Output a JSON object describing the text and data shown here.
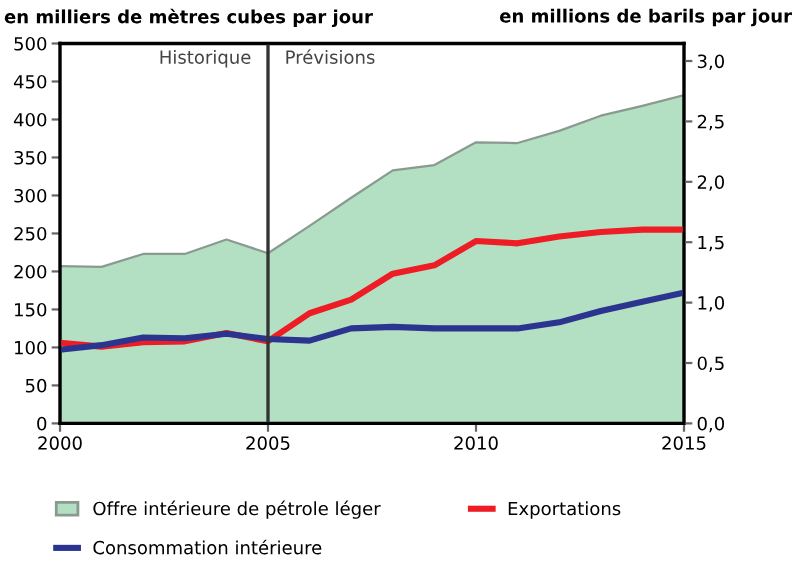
{
  "chart_data": {
    "type": "line",
    "ylabel": "en milliers de mètres cubes par jour",
    "y2label": "en millions de barils par jour",
    "x": [
      2000,
      2001,
      2002,
      2003,
      2004,
      2005,
      2006,
      2007,
      2008,
      2009,
      2010,
      2011,
      2012,
      2013,
      2014,
      2015
    ],
    "series": [
      {
        "name": "Offre intérieure de pétrole léger",
        "type": "area",
        "color": "#b3dfc3",
        "values": [
          207,
          206,
          223,
          223,
          242,
          224,
          260,
          297,
          333,
          340,
          370,
          369,
          385,
          405,
          418,
          432
        ]
      },
      {
        "name": "Exportations",
        "color": "#ee1c25",
        "values": [
          106,
          101,
          107,
          108,
          119,
          108,
          145,
          163,
          197,
          208,
          240,
          237,
          246,
          252,
          255,
          255
        ]
      },
      {
        "name": "Consommation intérieure",
        "color": "#2b3590",
        "values": [
          97,
          103,
          113,
          112,
          118,
          111,
          109,
          125,
          127,
          125,
          125,
          125,
          133,
          148,
          160,
          172
        ]
      }
    ],
    "xlim": [
      2000,
      2015
    ],
    "xticks": [
      2000,
      2005,
      2010,
      2015
    ],
    "ylim": [
      0,
      500
    ],
    "yticks": [
      0,
      50,
      100,
      150,
      200,
      250,
      300,
      350,
      400,
      450,
      500
    ],
    "y2lim": [
      0,
      3.145
    ],
    "y2ticks": [
      {
        "value": 0,
        "label": "0,0"
      },
      {
        "value": 0.5,
        "label": "0,5"
      },
      {
        "value": 1,
        "label": "1,0"
      },
      {
        "value": 1.5,
        "label": "1,5"
      },
      {
        "value": 2,
        "label": "2,0"
      },
      {
        "value": 2.5,
        "label": "2,5"
      },
      {
        "value": 3,
        "label": "3,0"
      }
    ],
    "ref_lines": [
      {
        "axis": "x",
        "value": 2005,
        "color": "#333333"
      }
    ],
    "annotations": [
      "Historique",
      "Prévisions"
    ],
    "legend": "bottom",
    "grid": false
  }
}
